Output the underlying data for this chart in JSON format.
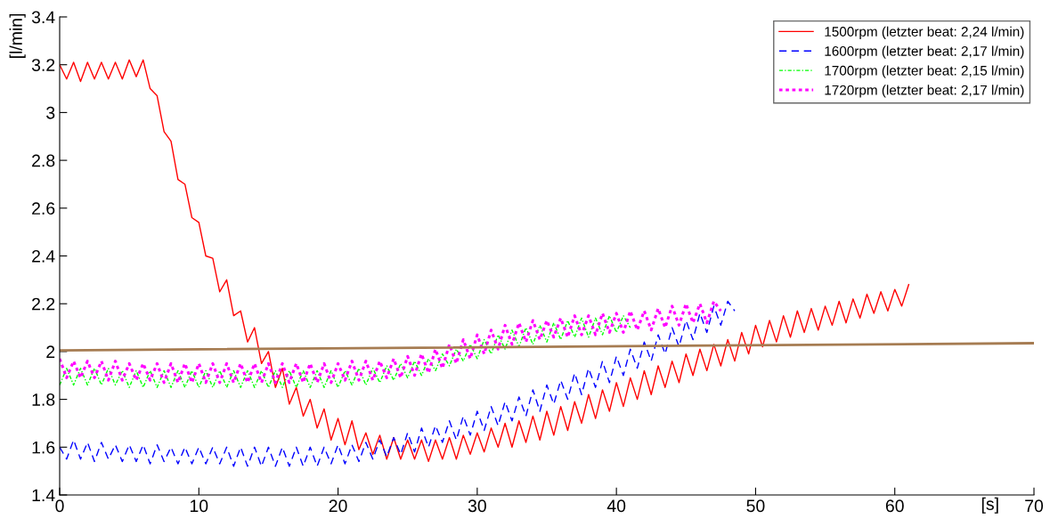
{
  "chart_data": {
    "type": "line",
    "xlabel": "[s]",
    "ylabel": "[l/min]",
    "xlim": [
      0,
      70
    ],
    "xticks": [
      0,
      10,
      20,
      30,
      40,
      50,
      60,
      70
    ],
    "ylim": [
      1.4,
      3.4
    ],
    "yticks": [
      1.4,
      1.6,
      1.8,
      2,
      2.2,
      2.4,
      2.6,
      2.8,
      3,
      3.2,
      3.4
    ],
    "grid": false,
    "legend": "top right",
    "series": [
      {
        "name": "1500rpm (letzter beat: 2,24 l/min)",
        "color": "#ff0000",
        "line_style": "solid",
        "x": [
          0,
          0.5,
          1,
          1.5,
          2,
          2.5,
          3,
          3.5,
          4,
          4.5,
          5,
          5.5,
          6,
          6.5,
          7,
          7.5,
          8,
          8.5,
          9,
          9.5,
          10,
          10.5,
          11,
          11.5,
          12,
          12.5,
          13,
          13.5,
          14,
          14.5,
          15,
          15.5,
          16,
          16.5,
          17,
          17.5,
          18,
          18.5,
          19,
          19.5,
          20,
          20.5,
          21,
          21.5,
          22,
          22.5,
          23,
          23.5,
          24,
          24.5,
          25,
          25.5,
          26,
          26.5,
          27,
          27.5,
          28,
          28.5,
          29,
          29.5,
          30,
          30.5,
          31,
          31.5,
          32,
          32.5,
          33,
          33.5,
          34,
          34.5,
          35,
          35.5,
          36,
          36.5,
          37,
          37.5,
          38,
          38.5,
          39,
          39.5,
          40,
          40.5,
          41,
          41.5,
          42,
          42.5,
          43,
          43.5,
          44,
          44.5,
          45,
          45.5,
          46,
          46.5,
          47,
          47.5,
          48,
          48.5,
          49,
          49.5,
          50,
          50.5,
          51,
          51.5,
          52,
          52.5,
          53,
          53.5,
          54,
          54.5,
          55,
          55.5,
          56,
          56.5,
          57,
          57.5,
          58,
          58.5,
          59,
          59.5,
          60,
          60.5,
          61
        ],
        "values": [
          3.2,
          3.14,
          3.21,
          3.13,
          3.21,
          3.14,
          3.21,
          3.14,
          3.21,
          3.14,
          3.22,
          3.15,
          3.22,
          3.1,
          3.07,
          2.92,
          2.88,
          2.72,
          2.7,
          2.56,
          2.54,
          2.4,
          2.39,
          2.25,
          2.3,
          2.15,
          2.17,
          2.04,
          2.1,
          1.95,
          2.0,
          1.85,
          1.93,
          1.78,
          1.85,
          1.73,
          1.8,
          1.68,
          1.76,
          1.63,
          1.72,
          1.61,
          1.71,
          1.59,
          1.66,
          1.57,
          1.65,
          1.55,
          1.64,
          1.55,
          1.63,
          1.55,
          1.63,
          1.54,
          1.63,
          1.55,
          1.64,
          1.55,
          1.65,
          1.57,
          1.66,
          1.58,
          1.68,
          1.6,
          1.7,
          1.6,
          1.71,
          1.62,
          1.73,
          1.63,
          1.75,
          1.65,
          1.77,
          1.67,
          1.79,
          1.7,
          1.82,
          1.72,
          1.84,
          1.75,
          1.87,
          1.77,
          1.89,
          1.8,
          1.92,
          1.82,
          1.94,
          1.85,
          1.96,
          1.87,
          1.99,
          1.9,
          2.01,
          1.92,
          2.03,
          1.94,
          2.05,
          1.96,
          2.08,
          1.99,
          2.11,
          2.02,
          2.13,
          2.04,
          2.15,
          2.06,
          2.17,
          2.08,
          2.18,
          2.09,
          2.19,
          2.11,
          2.21,
          2.12,
          2.22,
          2.14,
          2.24,
          2.16,
          2.25,
          2.17,
          2.26,
          2.19,
          2.28
        ]
      },
      {
        "name": "1600rpm (letzter beat: 2,17 l/min)",
        "color": "#0000ff",
        "line_style": "dashed",
        "x": [
          0,
          0.5,
          1,
          1.5,
          2,
          2.5,
          3,
          3.5,
          4,
          4.5,
          5,
          5.5,
          6,
          6.5,
          7,
          7.5,
          8,
          8.5,
          9,
          9.5,
          10,
          10.5,
          11,
          11.5,
          12,
          12.5,
          13,
          13.5,
          14,
          14.5,
          15,
          15.5,
          16,
          16.5,
          17,
          17.5,
          18,
          18.5,
          19,
          19.5,
          20,
          20.5,
          21,
          21.5,
          22,
          22.5,
          23,
          23.5,
          24,
          24.5,
          25,
          25.5,
          26,
          26.5,
          27,
          27.5,
          28,
          28.5,
          29,
          29.5,
          30,
          30.5,
          31,
          31.5,
          32,
          32.5,
          33,
          33.5,
          34,
          34.5,
          35,
          35.5,
          36,
          36.5,
          37,
          37.5,
          38,
          38.5,
          39,
          39.5,
          40,
          40.5,
          41,
          41.5,
          42,
          42.5,
          43,
          43.5,
          44,
          44.5,
          45,
          45.5,
          46,
          46.5,
          47,
          47.5,
          48,
          48.5
        ],
        "values": [
          1.6,
          1.55,
          1.63,
          1.55,
          1.62,
          1.54,
          1.62,
          1.55,
          1.61,
          1.54,
          1.61,
          1.54,
          1.61,
          1.53,
          1.61,
          1.54,
          1.6,
          1.53,
          1.6,
          1.53,
          1.6,
          1.53,
          1.6,
          1.53,
          1.6,
          1.52,
          1.6,
          1.52,
          1.6,
          1.52,
          1.6,
          1.52,
          1.6,
          1.52,
          1.6,
          1.52,
          1.6,
          1.52,
          1.6,
          1.53,
          1.61,
          1.53,
          1.61,
          1.54,
          1.62,
          1.55,
          1.63,
          1.56,
          1.64,
          1.57,
          1.66,
          1.58,
          1.68,
          1.6,
          1.69,
          1.62,
          1.71,
          1.63,
          1.73,
          1.65,
          1.75,
          1.67,
          1.77,
          1.69,
          1.79,
          1.71,
          1.81,
          1.73,
          1.84,
          1.75,
          1.86,
          1.78,
          1.88,
          1.8,
          1.91,
          1.82,
          1.93,
          1.85,
          1.96,
          1.87,
          1.98,
          1.9,
          2.01,
          1.93,
          2.04,
          1.96,
          2.07,
          1.99,
          2.1,
          2.02,
          2.13,
          2.05,
          2.16,
          2.08,
          2.19,
          2.11,
          2.21,
          2.17
        ]
      },
      {
        "name": "1700rpm (letzter beat: 2,15 l/min)",
        "color": "#00ff00",
        "line_style": "dashdot",
        "x": [
          0,
          0.5,
          1,
          1.5,
          2,
          2.5,
          3,
          3.5,
          4,
          4.5,
          5,
          5.5,
          6,
          6.5,
          7,
          7.5,
          8,
          8.5,
          9,
          9.5,
          10,
          10.5,
          11,
          11.5,
          12,
          12.5,
          13,
          13.5,
          14,
          14.5,
          15,
          15.5,
          16,
          16.5,
          17,
          17.5,
          18,
          18.5,
          19,
          19.5,
          20,
          20.5,
          21,
          21.5,
          22,
          22.5,
          23,
          23.5,
          24,
          24.5,
          25,
          25.5,
          26,
          26.5,
          27,
          27.5,
          28,
          28.5,
          29,
          29.5,
          30,
          30.5,
          31,
          31.5,
          32,
          32.5,
          33,
          33.5,
          34,
          34.5,
          35,
          35.5,
          36,
          36.5,
          37,
          37.5,
          38,
          38.5,
          39,
          39.5,
          40,
          40.5,
          41
        ],
        "values": [
          1.86,
          1.93,
          1.86,
          1.93,
          1.86,
          1.93,
          1.86,
          1.93,
          1.86,
          1.92,
          1.85,
          1.92,
          1.85,
          1.92,
          1.85,
          1.92,
          1.85,
          1.92,
          1.85,
          1.92,
          1.85,
          1.92,
          1.85,
          1.92,
          1.85,
          1.92,
          1.85,
          1.92,
          1.85,
          1.92,
          1.85,
          1.92,
          1.85,
          1.92,
          1.85,
          1.92,
          1.85,
          1.92,
          1.85,
          1.92,
          1.85,
          1.92,
          1.86,
          1.93,
          1.86,
          1.93,
          1.87,
          1.94,
          1.88,
          1.95,
          1.89,
          1.96,
          1.9,
          1.97,
          1.92,
          1.99,
          1.94,
          2.01,
          1.96,
          2.03,
          1.97,
          2.05,
          1.99,
          2.07,
          2.01,
          2.09,
          2.02,
          2.1,
          2.03,
          2.11,
          2.04,
          2.12,
          2.05,
          2.13,
          2.06,
          2.14,
          2.06,
          2.14,
          2.07,
          2.15,
          2.08,
          2.15,
          2.1
        ]
      },
      {
        "name": "1720rpm (letzter beat: 2,17 l/min)",
        "color": "#ff00ff",
        "line_style": "dotted",
        "x": [
          0,
          0.5,
          1,
          1.5,
          2,
          2.5,
          3,
          3.5,
          4,
          4.5,
          5,
          5.5,
          6,
          6.5,
          7,
          7.5,
          8,
          8.5,
          9,
          9.5,
          10,
          10.5,
          11,
          11.5,
          12,
          12.5,
          13,
          13.5,
          14,
          14.5,
          15,
          15.5,
          16,
          16.5,
          17,
          17.5,
          18,
          18.5,
          19,
          19.5,
          20,
          20.5,
          21,
          21.5,
          22,
          22.5,
          23,
          23.5,
          24,
          24.5,
          25,
          25.5,
          26,
          26.5,
          27,
          27.5,
          28,
          28.5,
          29,
          29.5,
          30,
          30.5,
          31,
          31.5,
          32,
          32.5,
          33,
          33.5,
          34,
          34.5,
          35,
          35.5,
          36,
          36.5,
          37,
          37.5,
          38,
          38.5,
          39,
          39.5,
          40,
          40.5,
          41,
          41.5,
          42,
          42.5,
          43,
          43.5,
          44,
          44.5,
          45,
          45.5,
          46,
          46.5,
          47,
          47.5
        ],
        "values": [
          1.97,
          1.89,
          1.96,
          1.89,
          1.96,
          1.89,
          1.96,
          1.88,
          1.96,
          1.88,
          1.95,
          1.88,
          1.95,
          1.88,
          1.95,
          1.87,
          1.95,
          1.87,
          1.95,
          1.87,
          1.95,
          1.87,
          1.95,
          1.87,
          1.95,
          1.87,
          1.95,
          1.87,
          1.95,
          1.87,
          1.95,
          1.87,
          1.95,
          1.87,
          1.95,
          1.87,
          1.95,
          1.87,
          1.95,
          1.87,
          1.95,
          1.88,
          1.96,
          1.88,
          1.96,
          1.88,
          1.96,
          1.89,
          1.97,
          1.89,
          1.98,
          1.9,
          1.99,
          1.91,
          2.01,
          1.93,
          2.03,
          1.95,
          2.05,
          1.97,
          2.07,
          1.99,
          2.09,
          2.01,
          2.11,
          2.03,
          2.12,
          2.04,
          2.13,
          2.05,
          2.13,
          2.06,
          2.14,
          2.06,
          2.15,
          2.07,
          2.15,
          2.07,
          2.16,
          2.08,
          2.16,
          2.08,
          2.17,
          2.09,
          2.17,
          2.09,
          2.18,
          2.1,
          2.19,
          2.11,
          2.2,
          2.12,
          2.2,
          2.12,
          2.21,
          2.17
        ]
      },
      {
        "color": "#a67c52",
        "line_style": "solid",
        "x": [
          0,
          70
        ],
        "values": [
          2.005,
          2.035
        ]
      }
    ]
  }
}
